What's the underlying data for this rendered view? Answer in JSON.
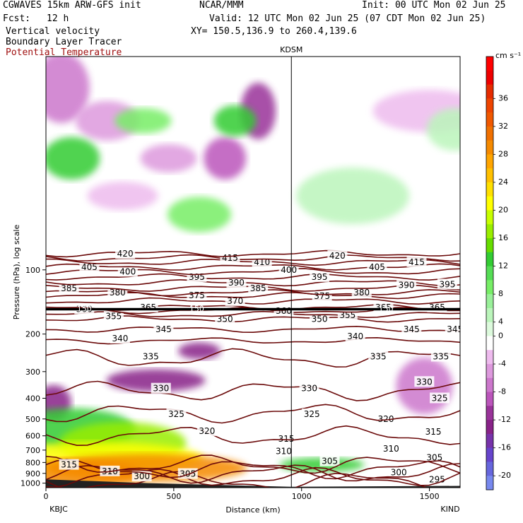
{
  "header": {
    "model": "CGWAVES 15km ARW-GFS init",
    "org": "NCAR/MMM",
    "init": "Init: 00 UTC Mon 02 Jun 25",
    "fcst_label": "Fcst:",
    "fcst_value": "12 h",
    "valid": "Valid: 12 UTC Mon 02 Jun 25 (07 CDT Mon 02 Jun 25)",
    "field1": "Vertical velocity",
    "field2": "Boundary Layer Tracer",
    "field3": "Potential Temperature",
    "xy": "XY= 150.5,136.9 to 260.4,139.6"
  },
  "colors": {
    "theta": "#6b0a0a",
    "field3_text": "#a01010",
    "tropopause": "#000000"
  },
  "chart_data": {
    "type": "heatmap",
    "xlabel": "Distance (km)",
    "ylabel": "Pressure (hPa), log scale",
    "xlim": [
      0,
      1620
    ],
    "ylim": [
      1050,
      10
    ],
    "x_ticks": [
      0,
      500,
      1000,
      1500
    ],
    "y_ticks": [
      100,
      200,
      300,
      400,
      500,
      600,
      700,
      800,
      900,
      1000
    ],
    "stations": [
      {
        "name": "KBJC",
        "km": 0
      },
      {
        "name": "KDSM",
        "km": 960
      },
      {
        "name": "KIND",
        "km": 1620
      }
    ],
    "colorbar": {
      "unit": "cm s⁻¹",
      "labels": [
        "36",
        "32",
        "28",
        "24",
        "20",
        "16",
        "12",
        "8",
        "4",
        "0",
        "-4",
        "-8",
        "-12",
        "-16",
        "-20"
      ],
      "levels": [
        40,
        38,
        36,
        34,
        32,
        30,
        28,
        26,
        24,
        22,
        20,
        18,
        16,
        14,
        12,
        10,
        8,
        6,
        4,
        2,
        -2,
        -4,
        -6,
        -8,
        -10,
        -12,
        -14,
        -16,
        -18,
        -20,
        -22
      ],
      "colors": [
        "#ff0000",
        "#ee0000",
        "#e52b00",
        "#ee4400",
        "#f05800",
        "#f07000",
        "#f58a00",
        "#ffa500",
        "#ffc000",
        "#ffe000",
        "#ffff00",
        "#c8ff00",
        "#99ee00",
        "#66dd00",
        "#33cc33",
        "#55dd55",
        "#77ee66",
        "#99f099",
        "#bbf5bb",
        "#ddfadd",
        "#ffffff",
        "#eebbee",
        "#dd99dd",
        "#cc77cc",
        "#bb55bb",
        "#993399",
        "#882288",
        "#7733aa",
        "#6644cc",
        "#6666dd",
        "#7788ee"
      ]
    },
    "theta_contours": [
      {
        "value": 295,
        "p": 980,
        "labels": [
          {
            "km": 1530,
            "p": 960
          }
        ]
      },
      {
        "value": 300,
        "p": 940,
        "labels": [
          {
            "km": 375,
            "p": 930
          },
          {
            "km": 1380,
            "p": 890
          }
        ]
      },
      {
        "value": 305,
        "p": 900,
        "labels": [
          {
            "km": 555,
            "p": 905
          },
          {
            "km": 1110,
            "p": 790
          },
          {
            "km": 1520,
            "p": 760
          }
        ]
      },
      {
        "value": 310,
        "p": 860,
        "labels": [
          {
            "km": 250,
            "p": 880
          },
          {
            "km": 930,
            "p": 710
          },
          {
            "km": 1350,
            "p": 690
          }
        ]
      },
      {
        "value": 315,
        "p": 820,
        "labels": [
          {
            "km": 90,
            "p": 820
          },
          {
            "km": 940,
            "p": 620
          },
          {
            "km": 1515,
            "p": 575
          }
        ]
      },
      {
        "value": 320,
        "p": 600,
        "labels": [
          {
            "km": 630,
            "p": 570
          },
          {
            "km": 1330,
            "p": 500
          }
        ]
      },
      {
        "value": 325,
        "p": 470,
        "labels": [
          {
            "km": 510,
            "p": 475
          },
          {
            "km": 1040,
            "p": 475
          },
          {
            "km": 1540,
            "p": 400
          }
        ]
      },
      {
        "value": 330,
        "p": 370,
        "labels": [
          {
            "km": 450,
            "p": 360
          },
          {
            "km": 1030,
            "p": 360
          },
          {
            "km": 1480,
            "p": 335
          }
        ]
      },
      {
        "value": 335,
        "p": 260,
        "labels": [
          {
            "km": 410,
            "p": 255
          },
          {
            "km": 1300,
            "p": 255
          },
          {
            "km": 1545,
            "p": 255
          }
        ]
      },
      {
        "value": 340,
        "p": 215,
        "labels": [
          {
            "km": 290,
            "p": 210
          },
          {
            "km": 1210,
            "p": 205
          }
        ]
      },
      {
        "value": 345,
        "p": 190,
        "labels": [
          {
            "km": 460,
            "p": 190
          },
          {
            "km": 1430,
            "p": 190
          },
          {
            "km": 1600,
            "p": 190
          }
        ]
      },
      {
        "value": 350,
        "p": 170,
        "labels": [
          {
            "km": 700,
            "p": 170
          },
          {
            "km": 1070,
            "p": 170
          }
        ]
      },
      {
        "value": 355,
        "p": 162,
        "labels": [
          {
            "km": 265,
            "p": 165
          },
          {
            "km": 1180,
            "p": 163
          }
        ]
      },
      {
        "value": 360,
        "p": 155,
        "labels": [
          {
            "km": 150,
            "p": 153
          },
          {
            "km": 930,
            "p": 156
          }
        ]
      },
      {
        "value": 365,
        "p": 150,
        "labels": [
          {
            "km": 400,
            "p": 150
          },
          {
            "km": 1320,
            "p": 150
          },
          {
            "km": 1530,
            "p": 150
          }
        ]
      },
      {
        "value": 370,
        "p": 140,
        "labels": [
          {
            "km": 740,
            "p": 140
          }
        ]
      },
      {
        "value": 375,
        "p": 132,
        "labels": [
          {
            "km": 590,
            "p": 132
          },
          {
            "km": 1080,
            "p": 133
          }
        ]
      },
      {
        "value": 380,
        "p": 128,
        "labels": [
          {
            "km": 280,
            "p": 128
          },
          {
            "km": 1235,
            "p": 128
          }
        ]
      },
      {
        "value": 385,
        "p": 122,
        "labels": [
          {
            "km": 90,
            "p": 122
          },
          {
            "km": 830,
            "p": 122
          }
        ]
      },
      {
        "value": 390,
        "p": 115,
        "labels": [
          {
            "km": 745,
            "p": 115
          },
          {
            "km": 1410,
            "p": 118
          }
        ]
      },
      {
        "value": 395,
        "p": 108,
        "labels": [
          {
            "km": 590,
            "p": 108
          },
          {
            "km": 1070,
            "p": 108
          },
          {
            "km": 1570,
            "p": 117
          }
        ]
      },
      {
        "value": 400,
        "p": 102,
        "labels": [
          {
            "km": 320,
            "p": 102
          },
          {
            "km": 950,
            "p": 100
          }
        ]
      },
      {
        "value": 405,
        "p": 97,
        "labels": [
          {
            "km": 170,
            "p": 97
          },
          {
            "km": 1295,
            "p": 97
          }
        ]
      },
      {
        "value": 410,
        "p": 92,
        "labels": [
          {
            "km": 845,
            "p": 92
          }
        ]
      },
      {
        "value": 415,
        "p": 88,
        "labels": [
          {
            "km": 720,
            "p": 88
          },
          {
            "km": 1450,
            "p": 92
          }
        ]
      },
      {
        "value": 420,
        "p": 84,
        "labels": [
          {
            "km": 310,
            "p": 84
          },
          {
            "km": 1140,
            "p": 86
          }
        ]
      }
    ],
    "tropopause": {
      "p": 153,
      "labels": [
        {
          "km": 150,
          "p": 153,
          "text": "150"
        },
        {
          "km": 590,
          "p": 153,
          "text": "150"
        },
        {
          "km": 1330,
          "p": 153,
          "text": "150"
        }
      ]
    },
    "w_features": [
      {
        "km": 60,
        "p": 14,
        "rx": 40,
        "ry": 50,
        "w": -8
      },
      {
        "km": 240,
        "p": 20,
        "rx": 45,
        "ry": 28,
        "w": -6
      },
      {
        "km": 480,
        "p": 30,
        "rx": 40,
        "ry": 20,
        "w": -6
      },
      {
        "km": 700,
        "p": 30,
        "rx": 30,
        "ry": 30,
        "w": -10
      },
      {
        "km": 830,
        "p": 18,
        "rx": 25,
        "ry": 40,
        "w": -12
      },
      {
        "km": 100,
        "p": 30,
        "rx": 40,
        "ry": 30,
        "w": 12
      },
      {
        "km": 380,
        "p": 20,
        "rx": 40,
        "ry": 18,
        "w": 8
      },
      {
        "km": 740,
        "p": 20,
        "rx": 30,
        "ry": 22,
        "w": 12
      },
      {
        "km": 600,
        "p": 55,
        "rx": 45,
        "ry": 25,
        "w": 8
      },
      {
        "km": 300,
        "p": 45,
        "rx": 50,
        "ry": 20,
        "w": -4
      },
      {
        "km": 1500,
        "p": 18,
        "rx": 80,
        "ry": 30,
        "w": -4
      },
      {
        "km": 1200,
        "p": 45,
        "rx": 80,
        "ry": 40,
        "w": 4
      },
      {
        "km": 1600,
        "p": 22,
        "rx": 40,
        "ry": 30,
        "w": 4
      },
      {
        "km": 600,
        "p": 240,
        "rx": 30,
        "ry": 12,
        "w": -14
      },
      {
        "km": 430,
        "p": 330,
        "rx": 70,
        "ry": 16,
        "w": -14
      },
      {
        "km": 1480,
        "p": 350,
        "rx": 40,
        "ry": 40,
        "w": -8
      },
      {
        "km": 30,
        "p": 420,
        "rx": 25,
        "ry": 25,
        "w": -14
      },
      {
        "km": 100,
        "p": 560,
        "rx": 90,
        "ry": 30,
        "w": 12
      },
      {
        "km": 300,
        "p": 650,
        "rx": 90,
        "ry": 30,
        "w": 16
      },
      {
        "km": 200,
        "p": 760,
        "rx": 150,
        "ry": 22,
        "w": 20
      },
      {
        "km": 400,
        "p": 850,
        "rx": 140,
        "ry": 20,
        "w": 28
      },
      {
        "km": 100,
        "p": 900,
        "rx": 100,
        "ry": 20,
        "w": 28
      },
      {
        "km": 1080,
        "p": 820,
        "rx": 60,
        "ry": 10,
        "w": 12
      }
    ]
  }
}
